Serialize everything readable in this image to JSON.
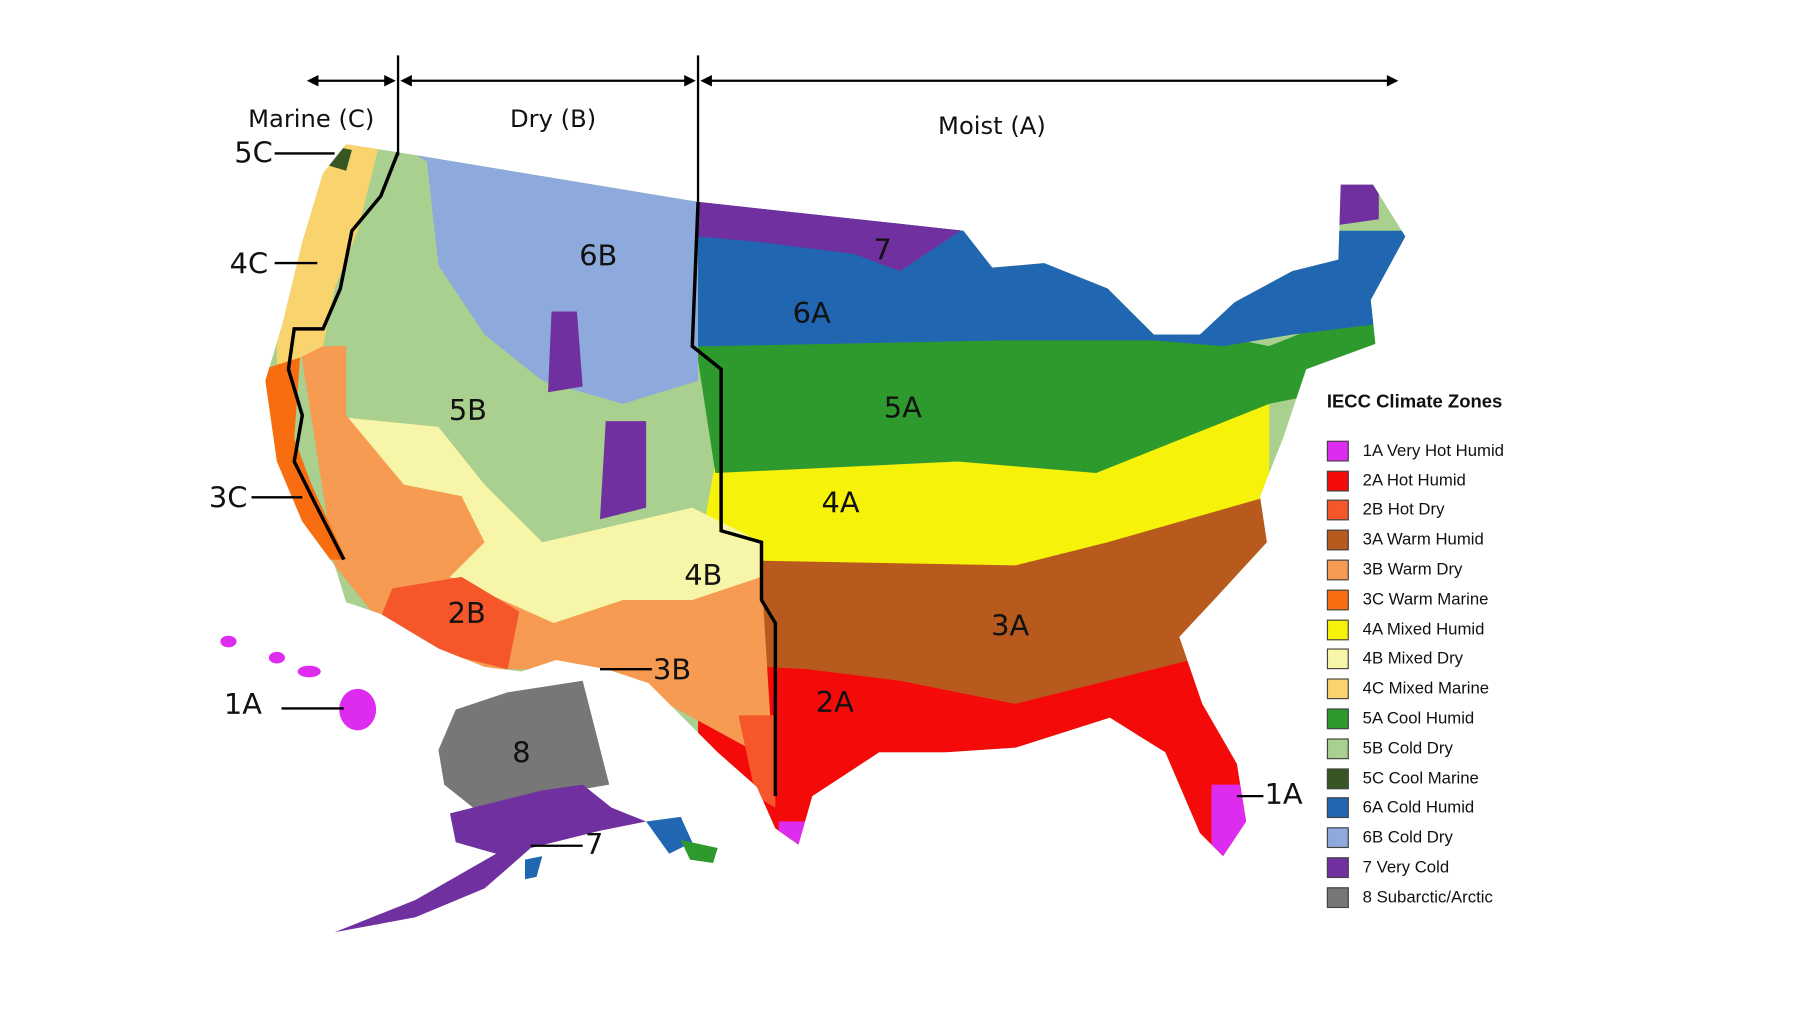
{
  "headers": {
    "marine": "Marine (C)",
    "dry": "Dry (B)",
    "moist": "Moist (A)"
  },
  "map_labels": [
    "5C",
    "4C",
    "3C",
    "1A",
    "6B",
    "5B",
    "2B",
    "3B",
    "4B",
    "8",
    "7",
    "6A",
    "5A",
    "4A",
    "3A",
    "2A",
    "1A",
    "7"
  ],
  "legend": {
    "title": "IECC Climate Zones",
    "items": [
      {
        "label": "1A Very Hot Humid",
        "color": "#dd2cf0"
      },
      {
        "label": "2A Hot Humid",
        "color": "#f50a0a"
      },
      {
        "label": "2B Hot Dry",
        "color": "#f5562a"
      },
      {
        "label": "3A Warm Humid",
        "color": "#b85a1e"
      },
      {
        "label": "3B Warm Dry",
        "color": "#f79a52"
      },
      {
        "label": "3C Warm Marine",
        "color": "#f76d10"
      },
      {
        "label": "4A Mixed Humid",
        "color": "#f7f20a"
      },
      {
        "label": "4B Mixed Dry",
        "color": "#f7f5a8"
      },
      {
        "label": "4C Mixed Marine",
        "color": "#f9d46e"
      },
      {
        "label": "5A Cool Humid",
        "color": "#2e9a2e"
      },
      {
        "label": "5B Cold Dry",
        "color": "#a9d08e"
      },
      {
        "label": "5C Cool Marine",
        "color": "#375623"
      },
      {
        "label": "6A Cold Humid",
        "color": "#2166b0"
      },
      {
        "label": "6B Cold Dry",
        "color": "#8ea9db"
      },
      {
        "label": "7 Very Cold",
        "color": "#7030a0"
      },
      {
        "label": "8 Subarctic/Arctic",
        "color": "#777777"
      }
    ]
  }
}
